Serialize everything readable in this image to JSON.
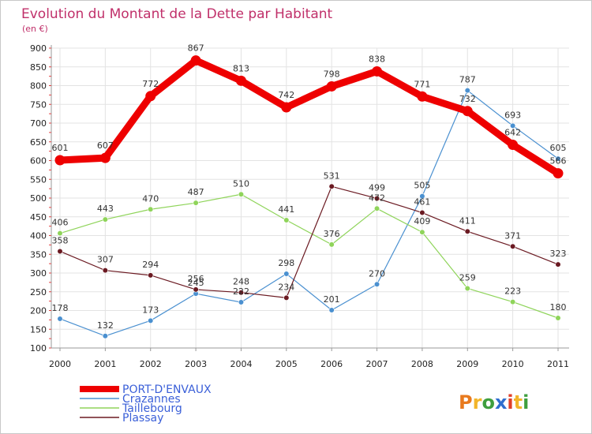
{
  "chart_data": {
    "type": "line",
    "title": "Evolution du Montant de la Dette par Habitant",
    "subtitle": "(en €)",
    "xlabel": "",
    "ylabel": "",
    "x": [
      "2000",
      "2001",
      "2002",
      "2003",
      "2004",
      "2005",
      "2006",
      "2007",
      "2008",
      "2009",
      "2010",
      "2011"
    ],
    "ylim": [
      100,
      900
    ],
    "yticks": [
      100,
      150,
      200,
      250,
      300,
      350,
      400,
      450,
      500,
      550,
      600,
      650,
      700,
      750,
      800,
      850,
      900
    ],
    "grid": true,
    "legend_position": "bottom-left",
    "series": [
      {
        "name": "PORT-D'ENVAUX",
        "color": "#ee0000",
        "values": [
          601,
          607,
          772,
          867,
          813,
          742,
          798,
          838,
          771,
          732,
          642,
          566
        ],
        "labels": [
          "601",
          "607",
          "772",
          "867",
          "813",
          "742",
          "798",
          "838",
          "771",
          "732",
          "642",
          "566"
        ]
      },
      {
        "name": "Crazannes",
        "color": "#4a90d0",
        "values": [
          178,
          132,
          173,
          245,
          222,
          298,
          201,
          270,
          505,
          787,
          693,
          605
        ],
        "labels": [
          "178",
          "132",
          "173",
          "245",
          "222",
          "298",
          "201",
          "270",
          "505",
          "787",
          "693",
          "605"
        ]
      },
      {
        "name": "Taillebourg",
        "color": "#8fd45a",
        "values": [
          406,
          443,
          470,
          487,
          510,
          441,
          376,
          472,
          409,
          259,
          223,
          180
        ],
        "labels": [
          "406",
          "443",
          "470",
          "487",
          "510",
          "441",
          "376",
          "472",
          "409",
          "259",
          "223",
          "180"
        ]
      },
      {
        "name": "Plassay",
        "color": "#6b1a22",
        "values": [
          358,
          307,
          294,
          256,
          248,
          234,
          531,
          499,
          461,
          411,
          371,
          323
        ],
        "labels": [
          "358",
          "307",
          "294",
          "256",
          "248",
          "234",
          "531",
          "499",
          "461",
          "411",
          "371",
          "323"
        ]
      }
    ]
  },
  "logo": {
    "text": "Proxiti"
  },
  "colors": {
    "title": "#c0306a",
    "legend_text": "#3a5fd8",
    "logo_p": "#e87a1e",
    "logo_r": "#f2b52a",
    "logo_o": "#3f9f3f",
    "logo_x": "#2f6fcf",
    "logo_i": "#e0402a",
    "logo_t": "#f2b52a",
    "logo_i2": "#3f9f3f"
  }
}
